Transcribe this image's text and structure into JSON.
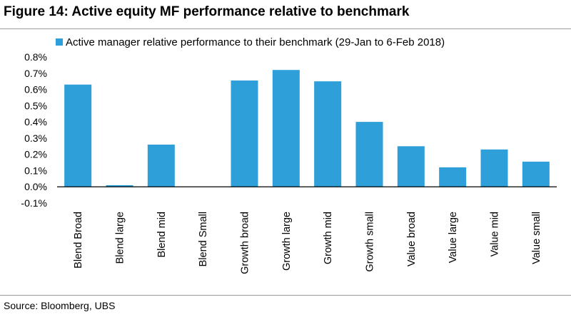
{
  "figure": {
    "title": "Figure 14: Active equity MF performance relative to benchmark",
    "source": "Source: Bloomberg, UBS"
  },
  "chart_data": {
    "type": "bar",
    "title": "Figure 14: Active equity MF performance relative to benchmark",
    "categories": [
      "Blend Broad",
      "Blend large",
      "Blend mid",
      "Blend Small",
      "Growth broad",
      "Growth large",
      "Growth mid",
      "Growth small",
      "Value broad",
      "Value large",
      "Value mid",
      "Value small"
    ],
    "series": [
      {
        "name": "Active manager relative performance to their benchmark (29-Jan to 6-Feb 2018)",
        "values": [
          0.63,
          0.01,
          0.26,
          0.0,
          0.655,
          0.72,
          0.65,
          0.4,
          0.25,
          0.12,
          0.23,
          0.155
        ],
        "color": "#2e9fd8"
      }
    ],
    "y_ticks": [
      "0.8%",
      "0.7%",
      "0.6%",
      "0.5%",
      "0.4%",
      "0.3%",
      "0.2%",
      "0.1%",
      "0.0%",
      "-0.1%"
    ],
    "ylim": [
      -0.1,
      0.8
    ],
    "y_unit": "%",
    "xlabel": "",
    "ylabel": "",
    "grid": false,
    "legend_position": "top"
  }
}
